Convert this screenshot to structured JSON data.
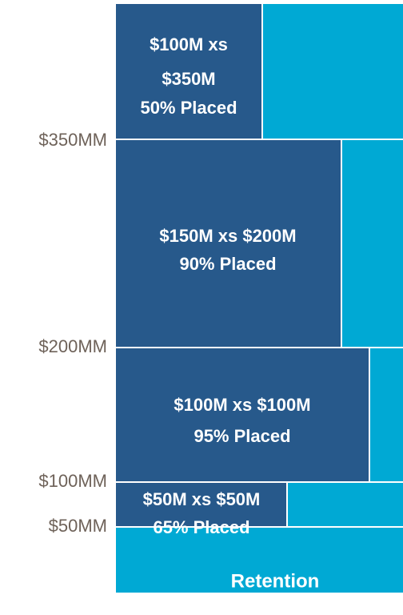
{
  "layers": [
    {
      "lines": [
        "$100M xs",
        "$350M",
        "50% Placed"
      ]
    },
    {
      "lines": [
        "$150M xs $200M",
        "90% Placed"
      ]
    },
    {
      "lines": [
        "$100M xs $100M",
        "95% Placed"
      ]
    },
    {
      "lines": [
        "$50M xs $50M",
        "65% Placed"
      ]
    },
    {
      "lines": [
        "Retention"
      ]
    }
  ],
  "axis_labels": [
    "$350MM",
    "$200MM",
    "$100MM",
    "$50MM"
  ]
}
